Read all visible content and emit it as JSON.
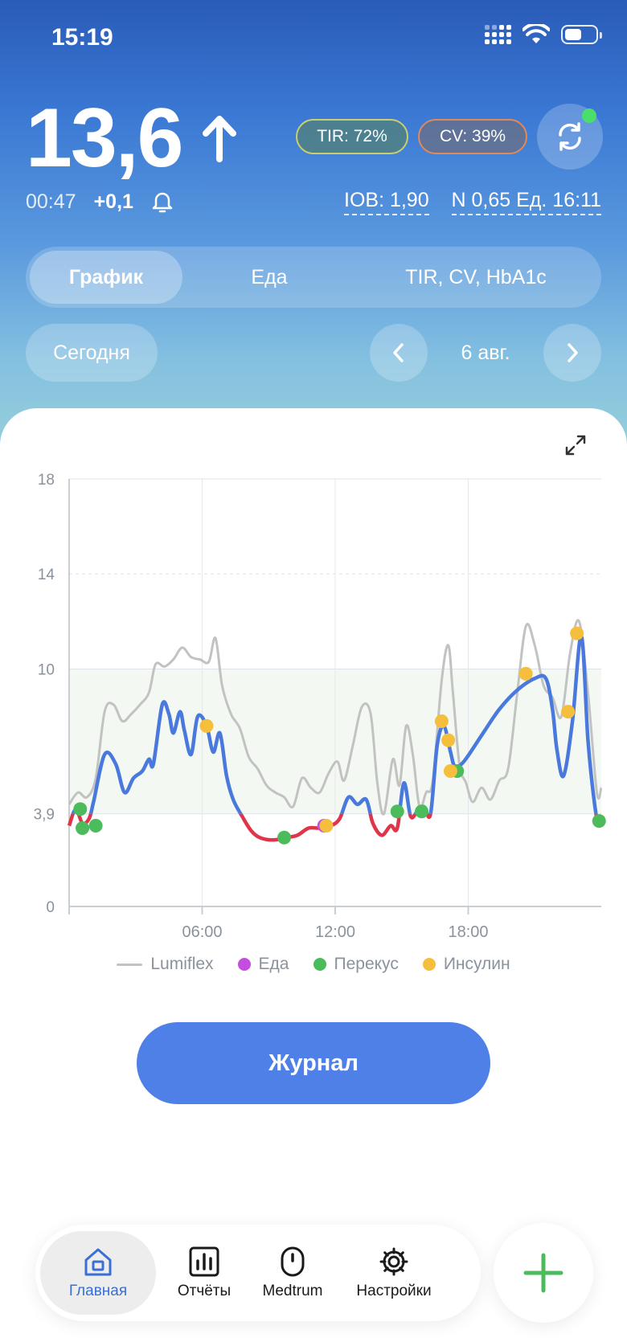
{
  "status_bar": {
    "time": "15:19"
  },
  "header": {
    "glucose_value": "13,6",
    "trend": "rising",
    "tir_badge": "TIR: 72%",
    "cv_badge": "CV: 39%",
    "last_reading_time": "00:47",
    "delta": "+0,1",
    "iob": "IOB: 1,90",
    "last_bolus": "N 0,65 Ед. 16:11"
  },
  "segments": [
    {
      "label": "График",
      "active": true
    },
    {
      "label": "Еда",
      "active": false
    },
    {
      "label": "TIR, CV, HbA1c",
      "active": false
    }
  ],
  "date_nav": {
    "today_label": "Сегодня",
    "date": "6 авг."
  },
  "legend": {
    "lumiflex": "Lumiflex",
    "meal": "Еда",
    "snack": "Перекус",
    "insulin": "Инсулин"
  },
  "journal_button": "Журнал",
  "tabbar": [
    {
      "label": "Главная",
      "icon": "home-icon",
      "active": true
    },
    {
      "label": "Отчёты",
      "icon": "reports-icon",
      "active": false
    },
    {
      "label": "Medtrum",
      "icon": "sensor-icon",
      "active": false
    },
    {
      "label": "Настройки",
      "icon": "gear-icon",
      "active": false
    }
  ],
  "colors": {
    "accent": "#4f80e7",
    "line": "#4a79dd",
    "low": "#e0344a",
    "lumiflex": "#c2c2c2",
    "meal": "#c44ee0",
    "snack": "#4cbb5c",
    "insulin": "#f5be3c",
    "target_band": "#f3f9f2"
  },
  "chart_data": {
    "type": "line",
    "x_unit": "hours",
    "xlim": [
      0,
      24
    ],
    "ylim": [
      0,
      18
    ],
    "y_ticks": [
      0,
      3.9,
      10,
      14,
      18
    ],
    "y_tick_labels": [
      "0",
      "3,9",
      "10",
      "14",
      "18"
    ],
    "x_ticks": [
      6,
      12,
      18
    ],
    "x_tick_labels": [
      "06:00",
      "12:00",
      "18:00"
    ],
    "target_range": [
      3.9,
      10
    ],
    "low_threshold": 3.9,
    "glucose": [
      [
        0,
        3.4
      ],
      [
        0.3,
        4.1
      ],
      [
        0.6,
        3.5
      ],
      [
        0.9,
        3.7
      ],
      [
        1.1,
        4.4
      ],
      [
        1.6,
        6.4
      ],
      [
        2.1,
        6.0
      ],
      [
        2.5,
        4.8
      ],
      [
        2.9,
        5.4
      ],
      [
        3.3,
        5.7
      ],
      [
        3.6,
        6.2
      ],
      [
        3.8,
        6.0
      ],
      [
        4.2,
        8.5
      ],
      [
        4.5,
        8.1
      ],
      [
        4.7,
        7.3
      ],
      [
        5.0,
        8.2
      ],
      [
        5.2,
        7.4
      ],
      [
        5.5,
        6.4
      ],
      [
        5.8,
        8.0
      ],
      [
        6.2,
        7.6
      ],
      [
        6.5,
        6.5
      ],
      [
        6.8,
        7.3
      ],
      [
        7.1,
        5.5
      ],
      [
        7.4,
        4.5
      ],
      [
        7.8,
        3.8
      ],
      [
        8.2,
        3.2
      ],
      [
        8.6,
        2.9
      ],
      [
        9.2,
        2.8
      ],
      [
        9.8,
        2.9
      ],
      [
        10.3,
        3.0
      ],
      [
        10.8,
        3.3
      ],
      [
        11.3,
        3.3
      ],
      [
        11.8,
        3.4
      ],
      [
        12.2,
        3.7
      ],
      [
        12.6,
        4.6
      ],
      [
        13.0,
        4.3
      ],
      [
        13.4,
        4.5
      ],
      [
        13.7,
        3.5
      ],
      [
        14.1,
        3.0
      ],
      [
        14.5,
        3.4
      ],
      [
        14.8,
        3.3
      ],
      [
        15.1,
        5.2
      ],
      [
        15.4,
        3.8
      ],
      [
        15.7,
        4.0
      ],
      [
        16.0,
        4.2
      ],
      [
        16.3,
        3.9
      ],
      [
        16.6,
        6.8
      ],
      [
        16.9,
        7.6
      ],
      [
        17.2,
        6.5
      ],
      [
        17.4,
        5.9
      ],
      [
        17.8,
        6.1
      ],
      [
        18.6,
        7.2
      ],
      [
        19.4,
        8.3
      ],
      [
        20.2,
        9.1
      ],
      [
        21.0,
        9.6
      ],
      [
        21.5,
        9.6
      ],
      [
        21.8,
        8.3
      ],
      [
        22.0,
        6.6
      ],
      [
        22.3,
        5.5
      ],
      [
        22.7,
        7.8
      ],
      [
        23.1,
        11.4
      ],
      [
        23.4,
        7.0
      ],
      [
        23.7,
        4.3
      ],
      [
        23.9,
        3.4
      ],
      [
        24,
        3.8
      ]
    ],
    "lumiflex": [
      [
        0,
        4.3
      ],
      [
        0.4,
        4.8
      ],
      [
        0.8,
        4.6
      ],
      [
        1.2,
        5.4
      ],
      [
        1.6,
        8.2
      ],
      [
        2.0,
        8.5
      ],
      [
        2.4,
        7.8
      ],
      [
        2.8,
        8.1
      ],
      [
        3.2,
        8.5
      ],
      [
        3.6,
        9.0
      ],
      [
        3.9,
        10.2
      ],
      [
        4.3,
        10.1
      ],
      [
        4.7,
        10.4
      ],
      [
        5.1,
        10.9
      ],
      [
        5.5,
        10.5
      ],
      [
        5.9,
        10.4
      ],
      [
        6.3,
        10.3
      ],
      [
        6.6,
        11.3
      ],
      [
        6.9,
        9.3
      ],
      [
        7.3,
        8.1
      ],
      [
        7.7,
        7.5
      ],
      [
        8.1,
        6.3
      ],
      [
        8.5,
        5.8
      ],
      [
        8.9,
        5.1
      ],
      [
        9.3,
        4.8
      ],
      [
        9.7,
        4.6
      ],
      [
        10.1,
        4.2
      ],
      [
        10.5,
        5.4
      ],
      [
        10.9,
        5.0
      ],
      [
        11.3,
        4.8
      ],
      [
        11.7,
        5.6
      ],
      [
        12.1,
        6.1
      ],
      [
        12.4,
        5.3
      ],
      [
        12.8,
        6.8
      ],
      [
        13.2,
        8.4
      ],
      [
        13.6,
        8.1
      ],
      [
        13.9,
        5.2
      ],
      [
        14.2,
        3.9
      ],
      [
        14.6,
        6.2
      ],
      [
        14.9,
        5.1
      ],
      [
        15.2,
        7.6
      ],
      [
        15.5,
        6.4
      ],
      [
        15.8,
        4.2
      ],
      [
        16.1,
        4.8
      ],
      [
        16.4,
        5.3
      ],
      [
        16.8,
        9.5
      ],
      [
        17.1,
        11.0
      ],
      [
        17.3,
        9.1
      ],
      [
        17.6,
        6.0
      ],
      [
        17.9,
        5.2
      ],
      [
        18.2,
        4.4
      ],
      [
        18.6,
        5.0
      ],
      [
        19.0,
        4.5
      ],
      [
        19.4,
        5.3
      ],
      [
        19.8,
        5.8
      ],
      [
        20.2,
        8.9
      ],
      [
        20.6,
        11.8
      ],
      [
        21.0,
        11.0
      ],
      [
        21.4,
        9.3
      ],
      [
        21.8,
        8.8
      ],
      [
        22.2,
        8.0
      ],
      [
        22.6,
        10.7
      ],
      [
        23.0,
        12.0
      ],
      [
        23.4,
        9.0
      ],
      [
        23.8,
        4.8
      ],
      [
        24,
        5.0
      ]
    ],
    "snack_points": [
      [
        0.5,
        4.1
      ],
      [
        0.6,
        3.3
      ],
      [
        1.2,
        3.4
      ],
      [
        9.7,
        2.9
      ],
      [
        14.8,
        4.0
      ],
      [
        15.9,
        4.0
      ],
      [
        17.5,
        5.7
      ],
      [
        23.9,
        3.6
      ]
    ],
    "meal_points": [
      [
        11.5,
        3.4
      ]
    ],
    "insulin_points": [
      [
        6.2,
        7.6
      ],
      [
        11.6,
        3.4
      ],
      [
        16.8,
        7.8
      ],
      [
        17.1,
        7.0
      ],
      [
        17.2,
        5.7
      ],
      [
        20.6,
        9.8
      ],
      [
        22.5,
        8.2
      ],
      [
        22.9,
        11.5
      ]
    ]
  }
}
